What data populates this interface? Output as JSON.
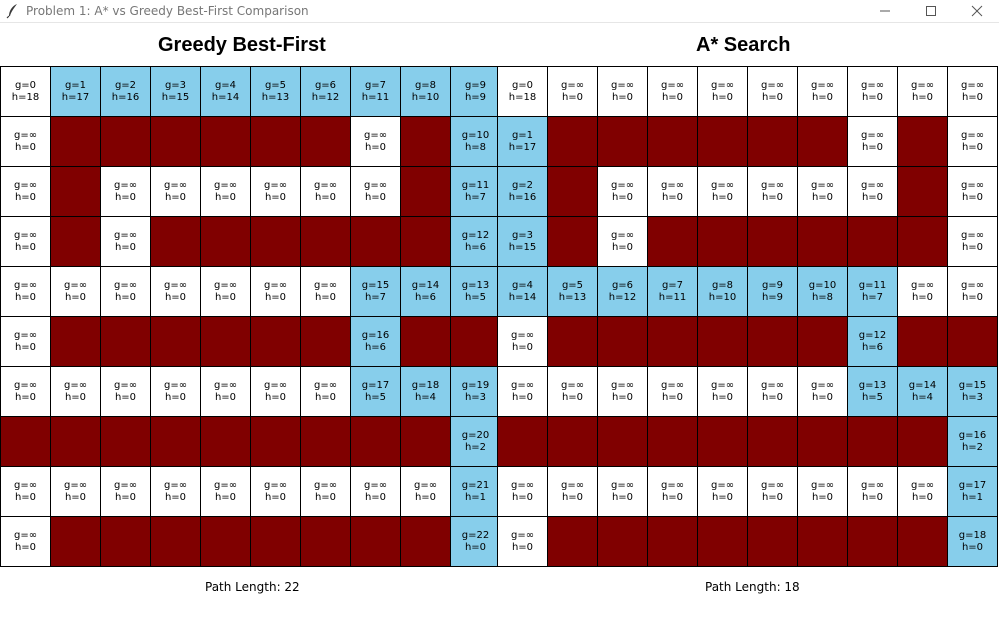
{
  "window": {
    "title": "Problem 1: A* vs Greedy Best-First Comparison",
    "icons": [
      "feather-icon",
      "minimize-icon",
      "maximize-icon",
      "close-icon"
    ]
  },
  "colors": {
    "open": "#ffffff",
    "wall": "#800000",
    "path": "#87ceeb"
  },
  "panels": [
    {
      "id": "left",
      "title": "Greedy Best-First",
      "path_length": "Path Length: 22",
      "rows": [
        [
          "o:g=0|h=18",
          "p:g=1|h=17",
          "p:g=2|h=16",
          "p:g=3|h=15",
          "p:g=4|h=14",
          "p:g=5|h=13",
          "p:g=6|h=12",
          "p:g=7|h=11",
          "p:g=8|h=10",
          "p:g=9|h=9"
        ],
        [
          "o:g=∞|h=0",
          "w",
          "w",
          "w",
          "w",
          "w",
          "w",
          "o:g=∞|h=0",
          "w",
          "p:g=10|h=8"
        ],
        [
          "o:g=∞|h=0",
          "w",
          "o:g=∞|h=0",
          "o:g=∞|h=0",
          "o:g=∞|h=0",
          "o:g=∞|h=0",
          "o:g=∞|h=0",
          "o:g=∞|h=0",
          "w",
          "p:g=11|h=7"
        ],
        [
          "o:g=∞|h=0",
          "w",
          "o:g=∞|h=0",
          "w",
          "w",
          "w",
          "w",
          "w",
          "w",
          "p:g=12|h=6"
        ],
        [
          "o:g=∞|h=0",
          "o:g=∞|h=0",
          "o:g=∞|h=0",
          "o:g=∞|h=0",
          "o:g=∞|h=0",
          "o:g=∞|h=0",
          "o:g=∞|h=0",
          "p:g=15|h=7",
          "p:g=14|h=6",
          "p:g=13|h=5"
        ],
        [
          "o:g=∞|h=0",
          "w",
          "w",
          "w",
          "w",
          "w",
          "w",
          "p:g=16|h=6",
          "w",
          "w"
        ],
        [
          "o:g=∞|h=0",
          "o:g=∞|h=0",
          "o:g=∞|h=0",
          "o:g=∞|h=0",
          "o:g=∞|h=0",
          "o:g=∞|h=0",
          "o:g=∞|h=0",
          "p:g=17|h=5",
          "p:g=18|h=4",
          "p:g=19|h=3"
        ],
        [
          "w",
          "w",
          "w",
          "w",
          "w",
          "w",
          "w",
          "w",
          "w",
          "p:g=20|h=2"
        ],
        [
          "o:g=∞|h=0",
          "o:g=∞|h=0",
          "o:g=∞|h=0",
          "o:g=∞|h=0",
          "o:g=∞|h=0",
          "o:g=∞|h=0",
          "o:g=∞|h=0",
          "o:g=∞|h=0",
          "o:g=∞|h=0",
          "p:g=21|h=1"
        ],
        [
          "o:g=∞|h=0",
          "w",
          "w",
          "w",
          "w",
          "w",
          "w",
          "w",
          "w",
          "p:g=22|h=0"
        ]
      ]
    },
    {
      "id": "right",
      "title": "A* Search",
      "path_length": "Path Length: 18",
      "rows": [
        [
          "o:g=0|h=18",
          "o:g=∞|h=0",
          "o:g=∞|h=0",
          "o:g=∞|h=0",
          "o:g=∞|h=0",
          "o:g=∞|h=0",
          "o:g=∞|h=0",
          "o:g=∞|h=0",
          "o:g=∞|h=0",
          "o:g=∞|h=0"
        ],
        [
          "p:g=1|h=17",
          "w",
          "w",
          "w",
          "w",
          "w",
          "w",
          "o:g=∞|h=0",
          "w",
          "o:g=∞|h=0"
        ],
        [
          "p:g=2|h=16",
          "w",
          "o:g=∞|h=0",
          "o:g=∞|h=0",
          "o:g=∞|h=0",
          "o:g=∞|h=0",
          "o:g=∞|h=0",
          "o:g=∞|h=0",
          "w",
          "o:g=∞|h=0"
        ],
        [
          "p:g=3|h=15",
          "w",
          "o:g=∞|h=0",
          "w",
          "w",
          "w",
          "w",
          "w",
          "w",
          "o:g=∞|h=0"
        ],
        [
          "p:g=4|h=14",
          "p:g=5|h=13",
          "p:g=6|h=12",
          "p:g=7|h=11",
          "p:g=8|h=10",
          "p:g=9|h=9",
          "p:g=10|h=8",
          "p:g=11|h=7",
          "o:g=∞|h=0",
          "o:g=∞|h=0"
        ],
        [
          "o:g=∞|h=0",
          "w",
          "w",
          "w",
          "w",
          "w",
          "w",
          "p:g=12|h=6",
          "w",
          "w"
        ],
        [
          "o:g=∞|h=0",
          "o:g=∞|h=0",
          "o:g=∞|h=0",
          "o:g=∞|h=0",
          "o:g=∞|h=0",
          "o:g=∞|h=0",
          "o:g=∞|h=0",
          "p:g=13|h=5",
          "p:g=14|h=4",
          "p:g=15|h=3"
        ],
        [
          "w",
          "w",
          "w",
          "w",
          "w",
          "w",
          "w",
          "w",
          "w",
          "p:g=16|h=2"
        ],
        [
          "o:g=∞|h=0",
          "o:g=∞|h=0",
          "o:g=∞|h=0",
          "o:g=∞|h=0",
          "o:g=∞|h=0",
          "o:g=∞|h=0",
          "o:g=∞|h=0",
          "o:g=∞|h=0",
          "o:g=∞|h=0",
          "p:g=17|h=1"
        ],
        [
          "o:g=∞|h=0",
          "w",
          "w",
          "w",
          "w",
          "w",
          "w",
          "w",
          "w",
          "p:g=18|h=0"
        ]
      ]
    }
  ]
}
